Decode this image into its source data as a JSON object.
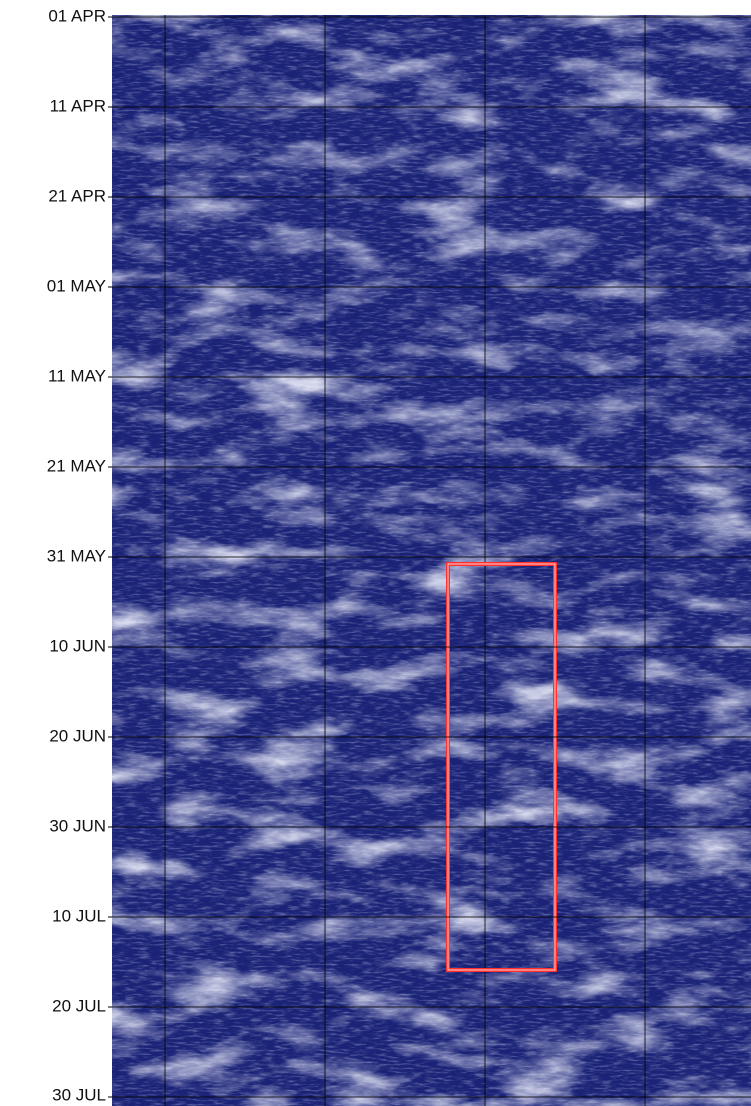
{
  "chart_data": {
    "type": "image-plot",
    "ylim": [
      0,
      120
    ],
    "yticks": [
      {
        "value": 0,
        "label": "01 APR"
      },
      {
        "value": 10,
        "label": "11 APR"
      },
      {
        "value": 20,
        "label": "21 APR"
      },
      {
        "value": 30,
        "label": "01 MAY"
      },
      {
        "value": 40,
        "label": "11 MAY"
      },
      {
        "value": 50,
        "label": "21 MAY"
      },
      {
        "value": 60,
        "label": "31 MAY"
      },
      {
        "value": 70,
        "label": "10 JUN"
      },
      {
        "value": 80,
        "label": "20 JUN"
      },
      {
        "value": 90,
        "label": "30 JUN"
      },
      {
        "value": 100,
        "label": "10 JUL"
      },
      {
        "value": 110,
        "label": "20 JUL"
      },
      {
        "value": 120,
        "label": "30 JUL"
      }
    ],
    "grid": true
  }
}
